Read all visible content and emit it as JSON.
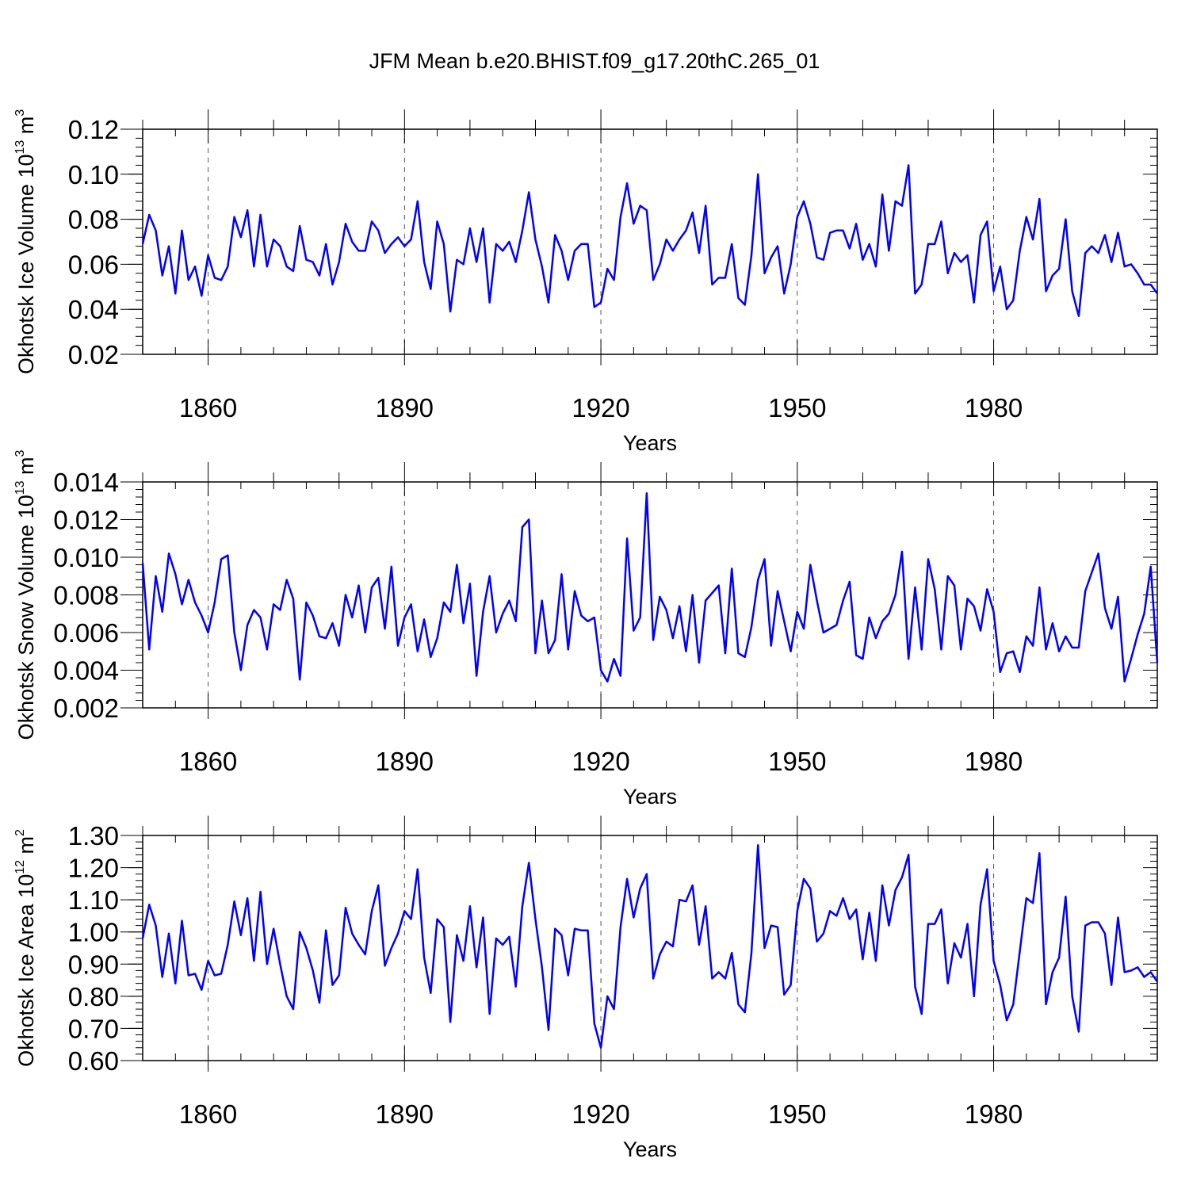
{
  "figure_title": "JFM Mean b.e20.BHIST.f09_g17.20thC.265_01",
  "colors": {
    "series": "#0000ff",
    "axis": "#000000",
    "grid": "#555555"
  },
  "chart_data": [
    {
      "type": "line",
      "title": "",
      "ylabel": "Okhotsk Ice Volume 10",
      "ylabel_exp": "13",
      "ylabel_unit": " m",
      "ylabel_unit_exp": "3",
      "xlabel": "Years",
      "xlim": [
        1850,
        2005
      ],
      "ylim": [
        0.02,
        0.12
      ],
      "x_ticks": [
        1860,
        1890,
        1920,
        1950,
        1980
      ],
      "y_ticks": [
        0.02,
        0.04,
        0.06,
        0.08,
        0.1,
        0.12
      ],
      "y_tick_labels": [
        "0.02",
        "0.04",
        "0.06",
        "0.08",
        "0.10",
        "0.12"
      ],
      "vertical_gridlines": true,
      "x_start": 1850,
      "series": [
        {
          "name": "Okhotsk Ice Volume",
          "values": [
            0.069,
            0.082,
            0.075,
            0.055,
            0.068,
            0.047,
            0.075,
            0.053,
            0.059,
            0.046,
            0.064,
            0.054,
            0.053,
            0.059,
            0.081,
            0.072,
            0.084,
            0.059,
            0.082,
            0.059,
            0.071,
            0.068,
            0.059,
            0.057,
            0.077,
            0.062,
            0.061,
            0.055,
            0.069,
            0.051,
            0.061,
            0.078,
            0.07,
            0.066,
            0.066,
            0.079,
            0.075,
            0.065,
            0.069,
            0.072,
            0.068,
            0.071,
            0.088,
            0.061,
            0.049,
            0.079,
            0.069,
            0.039,
            0.062,
            0.06,
            0.076,
            0.061,
            0.076,
            0.043,
            0.069,
            0.066,
            0.07,
            0.061,
            0.075,
            0.092,
            0.071,
            0.059,
            0.043,
            0.073,
            0.066,
            0.053,
            0.066,
            0.069,
            0.069,
            0.041,
            0.043,
            0.058,
            0.053,
            0.081,
            0.096,
            0.078,
            0.086,
            0.084,
            0.053,
            0.06,
            0.071,
            0.066,
            0.071,
            0.075,
            0.083,
            0.065,
            0.086,
            0.051,
            0.054,
            0.054,
            0.069,
            0.045,
            0.042,
            0.064,
            0.1,
            0.056,
            0.063,
            0.068,
            0.047,
            0.06,
            0.081,
            0.088,
            0.078,
            0.063,
            0.062,
            0.074,
            0.075,
            0.075,
            0.067,
            0.078,
            0.062,
            0.069,
            0.059,
            0.091,
            0.066,
            0.088,
            0.086,
            0.104,
            0.047,
            0.051,
            0.069,
            0.069,
            0.079,
            0.056,
            0.065,
            0.061,
            0.064,
            0.043,
            0.073,
            0.079,
            0.048,
            0.059,
            0.04,
            0.044,
            0.066,
            0.081,
            0.071,
            0.089,
            0.048,
            0.055,
            0.058,
            0.08,
            0.048,
            0.037,
            0.065,
            0.068,
            0.065,
            0.073,
            0.061,
            0.074,
            0.059,
            0.06,
            0.056,
            0.051,
            0.051,
            0.047
          ]
        }
      ]
    },
    {
      "type": "line",
      "title": "",
      "ylabel": "Okhotsk Snow Volume 10",
      "ylabel_exp": "13",
      "ylabel_unit": " m",
      "ylabel_unit_exp": "3",
      "xlabel": "Years",
      "xlim": [
        1850,
        2005
      ],
      "ylim": [
        0.002,
        0.014
      ],
      "x_ticks": [
        1860,
        1890,
        1920,
        1950,
        1980
      ],
      "y_ticks": [
        0.002,
        0.004,
        0.006,
        0.008,
        0.01,
        0.012,
        0.014
      ],
      "y_tick_labels": [
        "0.002",
        "0.004",
        "0.006",
        "0.008",
        "0.010",
        "0.012",
        "0.014"
      ],
      "vertical_gridlines": true,
      "x_start": 1850,
      "series": [
        {
          "name": "Okhotsk Snow Volume",
          "values": [
            0.0097,
            0.0051,
            0.009,
            0.0071,
            0.0102,
            0.0091,
            0.0075,
            0.0088,
            0.0076,
            0.0069,
            0.006,
            0.0076,
            0.0099,
            0.0101,
            0.006,
            0.004,
            0.0064,
            0.0072,
            0.0068,
            0.0051,
            0.0075,
            0.0072,
            0.0088,
            0.0078,
            0.0035,
            0.0076,
            0.0069,
            0.0058,
            0.0057,
            0.0065,
            0.0053,
            0.008,
            0.0068,
            0.0085,
            0.006,
            0.0084,
            0.0089,
            0.0062,
            0.0095,
            0.0053,
            0.0068,
            0.0075,
            0.005,
            0.0067,
            0.0047,
            0.0057,
            0.0076,
            0.0071,
            0.0096,
            0.0065,
            0.0086,
            0.0037,
            0.0071,
            0.009,
            0.006,
            0.007,
            0.0077,
            0.0066,
            0.0116,
            0.012,
            0.0049,
            0.0077,
            0.0049,
            0.0056,
            0.0091,
            0.0051,
            0.0082,
            0.0069,
            0.0066,
            0.0068,
            0.004,
            0.0034,
            0.0046,
            0.0037,
            0.011,
            0.0061,
            0.0068,
            0.0134,
            0.0056,
            0.0079,
            0.0072,
            0.0057,
            0.0074,
            0.005,
            0.008,
            0.0044,
            0.0077,
            0.0081,
            0.0085,
            0.0049,
            0.0094,
            0.0049,
            0.0047,
            0.0063,
            0.0088,
            0.0099,
            0.0053,
            0.0082,
            0.0066,
            0.005,
            0.0071,
            0.0062,
            0.0096,
            0.0077,
            0.006,
            0.0062,
            0.0064,
            0.0077,
            0.0087,
            0.0048,
            0.0046,
            0.0068,
            0.0057,
            0.0066,
            0.007,
            0.008,
            0.0103,
            0.0046,
            0.0084,
            0.0051,
            0.0099,
            0.0083,
            0.0051,
            0.009,
            0.0085,
            0.0051,
            0.0078,
            0.0074,
            0.0061,
            0.0083,
            0.0071,
            0.0039,
            0.0049,
            0.005,
            0.0039,
            0.0058,
            0.0053,
            0.0084,
            0.0051,
            0.0065,
            0.005,
            0.0058,
            0.0052,
            0.0052,
            0.0082,
            0.0092,
            0.0102,
            0.0073,
            0.0062,
            0.0079,
            0.0034,
            0.0046,
            0.0059,
            0.007,
            0.0095,
            0.0044
          ]
        }
      ]
    },
    {
      "type": "line",
      "title": "",
      "ylabel": "Okhotsk Ice Area 10",
      "ylabel_exp": "12",
      "ylabel_unit": " m",
      "ylabel_unit_exp": "2",
      "xlabel": "Years",
      "xlim": [
        1850,
        2005
      ],
      "ylim": [
        0.6,
        1.3
      ],
      "x_ticks": [
        1860,
        1890,
        1920,
        1950,
        1980
      ],
      "y_ticks": [
        0.6,
        0.7,
        0.8,
        0.9,
        1.0,
        1.1,
        1.2,
        1.3
      ],
      "y_tick_labels": [
        "0.60",
        "0.70",
        "0.80",
        "0.90",
        "1.00",
        "1.10",
        "1.20",
        "1.30"
      ],
      "vertical_gridlines": true,
      "x_start": 1850,
      "series": [
        {
          "name": "Okhotsk Ice Area",
          "values": [
            0.98,
            1.085,
            1.02,
            0.86,
            0.995,
            0.84,
            1.035,
            0.865,
            0.87,
            0.82,
            0.91,
            0.865,
            0.87,
            0.96,
            1.095,
            0.99,
            1.105,
            0.91,
            1.125,
            0.9,
            1.01,
            0.9,
            0.8,
            0.76,
            1.0,
            0.95,
            0.88,
            0.78,
            1.005,
            0.835,
            0.865,
            1.075,
            0.995,
            0.96,
            0.93,
            1.065,
            1.145,
            0.895,
            0.95,
            0.995,
            1.065,
            1.04,
            1.195,
            0.92,
            0.81,
            1.04,
            1.015,
            0.72,
            0.99,
            0.91,
            1.08,
            0.89,
            1.045,
            0.745,
            0.98,
            0.96,
            0.985,
            0.83,
            1.08,
            1.215,
            1.04,
            0.89,
            0.695,
            1.01,
            0.99,
            0.865,
            1.01,
            1.005,
            1.005,
            0.715,
            0.64,
            0.8,
            0.76,
            1.015,
            1.165,
            1.045,
            1.135,
            1.18,
            0.855,
            0.93,
            0.97,
            0.955,
            1.1,
            1.095,
            1.145,
            0.96,
            1.08,
            0.855,
            0.875,
            0.855,
            0.935,
            0.775,
            0.75,
            0.935,
            1.27,
            0.95,
            1.02,
            1.015,
            0.805,
            0.835,
            1.065,
            1.165,
            1.135,
            0.97,
            0.995,
            1.065,
            1.05,
            1.105,
            1.04,
            1.07,
            0.915,
            1.06,
            0.91,
            1.145,
            1.02,
            1.13,
            1.17,
            1.24,
            0.83,
            0.745,
            1.025,
            1.025,
            1.07,
            0.84,
            0.965,
            0.92,
            1.025,
            0.8,
            1.085,
            1.195,
            0.91,
            0.835,
            0.725,
            0.775,
            0.94,
            1.105,
            1.09,
            1.245,
            0.775,
            0.875,
            0.92,
            1.11,
            0.8,
            0.69,
            1.02,
            1.03,
            1.03,
            0.995,
            0.835,
            1.045,
            0.875,
            0.88,
            0.89,
            0.86,
            0.875,
            0.845
          ]
        }
      ]
    }
  ]
}
